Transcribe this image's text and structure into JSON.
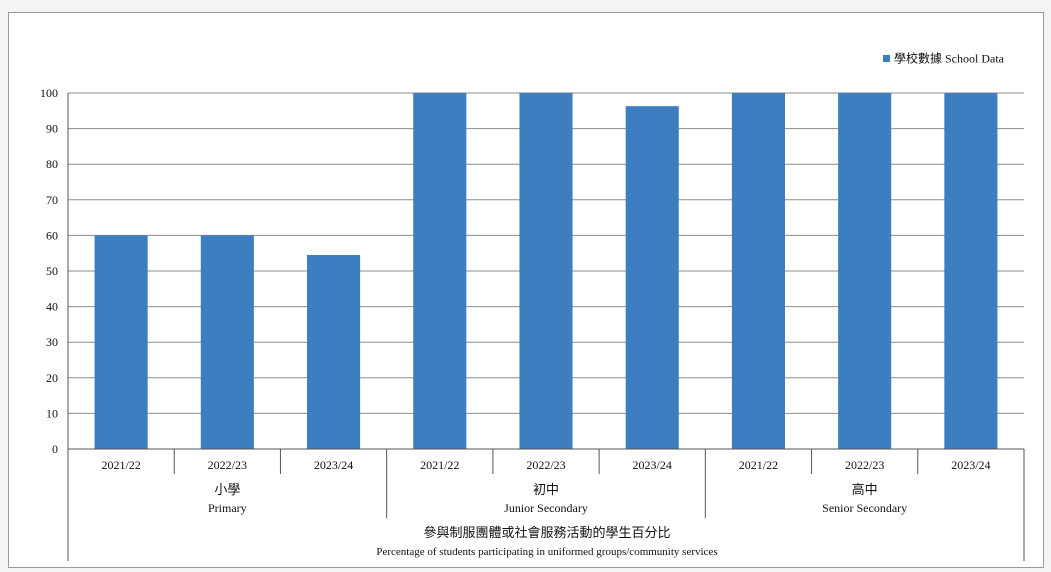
{
  "chart_data": {
    "type": "bar",
    "title": "",
    "legend": {
      "position": "top-right",
      "label": "學校數據 School Data",
      "color": "#3d7ec1"
    },
    "ylim": [
      0,
      100
    ],
    "yticks": [
      0,
      10,
      20,
      30,
      40,
      50,
      60,
      70,
      80,
      90,
      100
    ],
    "grid": true,
    "groups": [
      {
        "label_zh": "小學",
        "label_en": "Primary",
        "categories": [
          "2021/22",
          "2022/23",
          "2023/24"
        ],
        "values": [
          60,
          60,
          54.5
        ]
      },
      {
        "label_zh": "初中",
        "label_en": "Junior Secondary",
        "categories": [
          "2021/22",
          "2022/23",
          "2023/24"
        ],
        "values": [
          100,
          100,
          96.3
        ]
      },
      {
        "label_zh": "高中",
        "label_en": "Senior Secondary",
        "categories": [
          "2021/22",
          "2022/23",
          "2023/24"
        ],
        "values": [
          100,
          100,
          100
        ]
      }
    ],
    "xlabel_zh": "參與制服團體或社會服務活動的學生百分比",
    "xlabel_en": "Percentage of students participating in uniformed groups/community services",
    "bar_color": "#3d7ec1"
  }
}
